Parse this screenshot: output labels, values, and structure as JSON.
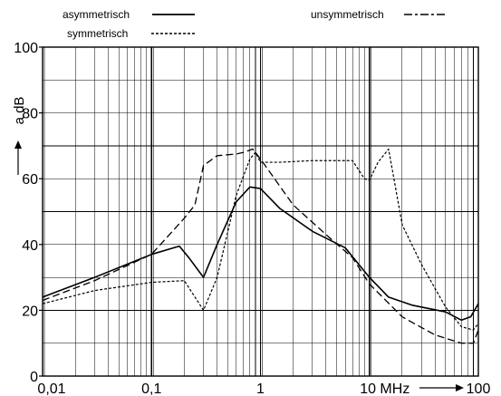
{
  "chart_data": {
    "type": "line",
    "x_scale": "log",
    "xlim": [
      0.01,
      100
    ],
    "ylim": [
      0,
      100
    ],
    "x_ticks": [
      {
        "value": 0.01,
        "label": "0,01"
      },
      {
        "value": 0.1,
        "label": "0,1"
      },
      {
        "value": 1,
        "label": "1"
      },
      {
        "value": 10,
        "label": "10 MHz"
      },
      {
        "value": 100,
        "label": "100"
      }
    ],
    "y_ticks": [
      {
        "value": 0,
        "label": "0"
      },
      {
        "value": 20,
        "label": "20"
      },
      {
        "value": 40,
        "label": "40"
      },
      {
        "value": 60,
        "label": "60"
      },
      {
        "value": 80,
        "label": "80"
      },
      {
        "value": 100,
        "label": "100"
      }
    ],
    "ylabel": "a dB",
    "grid": true,
    "legend_position": "top",
    "series": [
      {
        "name": "asymmetrisch",
        "style": "solid",
        "color": "#000000",
        "points": [
          [
            0.01,
            24
          ],
          [
            0.03,
            30
          ],
          [
            0.1,
            37
          ],
          [
            0.18,
            39.5
          ],
          [
            0.22,
            36
          ],
          [
            0.3,
            30
          ],
          [
            0.4,
            40
          ],
          [
            0.6,
            53
          ],
          [
            0.8,
            57.5
          ],
          [
            1.0,
            57
          ],
          [
            1.5,
            51
          ],
          [
            3,
            44
          ],
          [
            6,
            39
          ],
          [
            10,
            30
          ],
          [
            15,
            24
          ],
          [
            25,
            21.5
          ],
          [
            50,
            19.5
          ],
          [
            70,
            17
          ],
          [
            85,
            18
          ],
          [
            100,
            22
          ]
        ]
      },
      {
        "name": "symmetrisch",
        "style": "dotted",
        "color": "#000000",
        "points": [
          [
            0.01,
            22
          ],
          [
            0.03,
            26
          ],
          [
            0.1,
            28.5
          ],
          [
            0.2,
            29
          ],
          [
            0.3,
            20
          ],
          [
            0.4,
            30
          ],
          [
            0.6,
            55
          ],
          [
            0.8,
            66
          ],
          [
            0.9,
            68
          ],
          [
            1.0,
            65
          ],
          [
            1.5,
            65
          ],
          [
            3,
            65.5
          ],
          [
            7,
            65.5
          ],
          [
            9,
            60
          ],
          [
            10,
            59.5
          ],
          [
            12,
            65
          ],
          [
            15,
            69
          ],
          [
            20,
            46
          ],
          [
            30,
            34
          ],
          [
            50,
            21
          ],
          [
            70,
            15
          ],
          [
            90,
            14
          ],
          [
            100,
            16
          ]
        ]
      },
      {
        "name": "unsymmetrisch",
        "style": "dashed",
        "color": "#000000",
        "points": [
          [
            0.01,
            23
          ],
          [
            0.03,
            29
          ],
          [
            0.1,
            37
          ],
          [
            0.2,
            48
          ],
          [
            0.25,
            52
          ],
          [
            0.3,
            64
          ],
          [
            0.4,
            67
          ],
          [
            0.6,
            67.5
          ],
          [
            0.7,
            68
          ],
          [
            0.85,
            69
          ],
          [
            1.0,
            66
          ],
          [
            2,
            52
          ],
          [
            4,
            43
          ],
          [
            7,
            36
          ],
          [
            10,
            28
          ],
          [
            20,
            18
          ],
          [
            40,
            12.5
          ],
          [
            70,
            10
          ],
          [
            90,
            10
          ],
          [
            100,
            14
          ]
        ]
      }
    ]
  }
}
